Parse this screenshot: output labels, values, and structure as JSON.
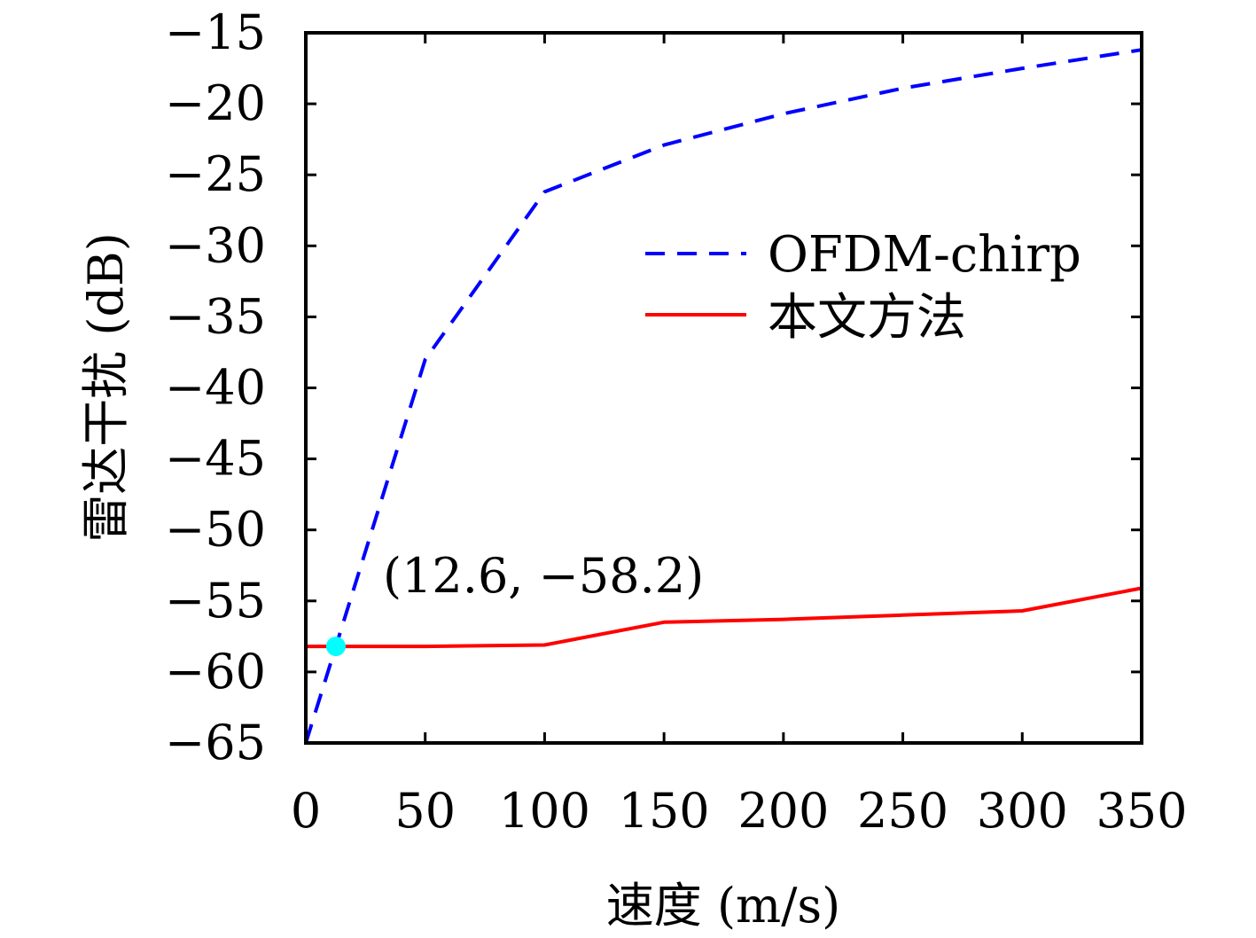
{
  "chart_data": {
    "type": "line",
    "xlabel": "速度 (m/s)",
    "ylabel": "雷达干扰 (dB)",
    "xlim": [
      0,
      350
    ],
    "ylim": [
      -65,
      -15
    ],
    "xticks": [
      0,
      50,
      100,
      150,
      200,
      250,
      300,
      350
    ],
    "yticks": [
      -15,
      -20,
      -25,
      -30,
      -35,
      -40,
      -45,
      -50,
      -55,
      -60,
      -65
    ],
    "grid": false,
    "legend_position": "upper-right",
    "series": [
      {
        "name": "OFDM-chirp",
        "color": "#0000ff",
        "style": "dashed",
        "x": [
          0,
          50,
          100,
          150,
          200,
          250,
          300,
          350
        ],
        "y": [
          -65,
          -38,
          -26.2,
          -22.9,
          -20.7,
          -18.9,
          -17.5,
          -16.2
        ]
      },
      {
        "name": "本文方法",
        "color": "#ff0000",
        "style": "solid",
        "x": [
          0,
          50,
          100,
          150,
          200,
          250,
          300,
          350
        ],
        "y": [
          -58.2,
          -58.2,
          -58.1,
          -56.5,
          -56.3,
          -56.0,
          -55.7,
          -54.1
        ]
      }
    ],
    "annotation": {
      "text": "(12.6, −58.2)",
      "x": 12.6,
      "y": -58.2,
      "marker_color": "#00ffff"
    }
  }
}
